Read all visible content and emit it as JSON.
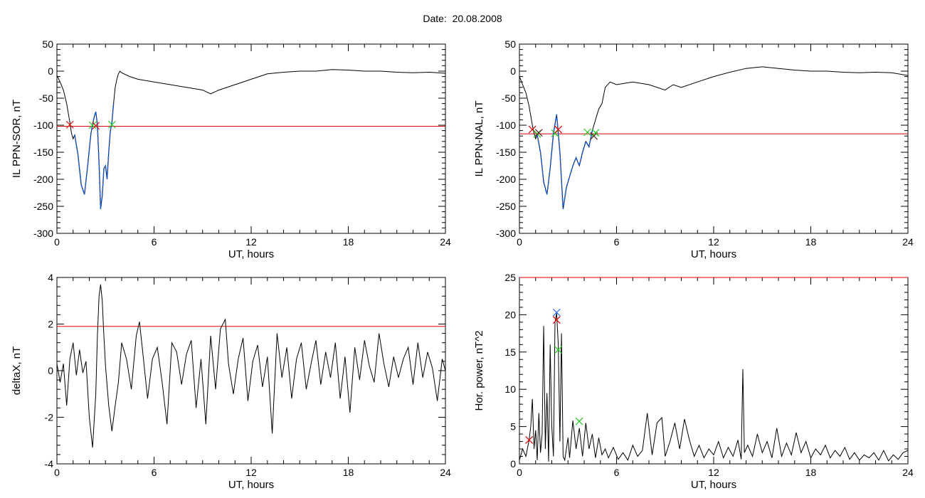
{
  "title": "Date:  20.08.2008",
  "colors": {
    "trace": "#000000",
    "threshold": "#e00000",
    "highlight": "#1f5fd0",
    "marker_red": "#e00000",
    "marker_green": "#22cc22",
    "marker_blue": "#2266ff",
    "marker_dark": "#552222"
  },
  "chart_data": [
    {
      "type": "line",
      "xlabel": "UT, hours",
      "ylabel": "IL PPN-SOR, nT",
      "xlim": [
        0,
        24
      ],
      "ylim": [
        -300,
        50
      ],
      "xticks": [
        "0",
        "6",
        "12",
        "18",
        "24"
      ],
      "yticks": [
        "50",
        "0",
        "-50",
        "-100",
        "-150",
        "-200",
        "-250",
        "-300"
      ],
      "series": [
        {
          "x": [
            0,
            0.2,
            0.4,
            0.6,
            0.8,
            0.9,
            1.0,
            1.1,
            1.3,
            1.5,
            1.7,
            1.9,
            2.1,
            2.3,
            2.4,
            2.5,
            2.6,
            2.7,
            2.8,
            2.9,
            3.0,
            3.1,
            3.2,
            3.3,
            3.4,
            3.5,
            3.6,
            3.7,
            3.8,
            3.9,
            4.0,
            4.5,
            5,
            6,
            7,
            8,
            9,
            9.5,
            10,
            11,
            12,
            13,
            14,
            15,
            16,
            17,
            18,
            19,
            20,
            21,
            22,
            23,
            24
          ],
          "y": [
            -8,
            -20,
            -35,
            -60,
            -95,
            -115,
            -125,
            -118,
            -155,
            -210,
            -228,
            -175,
            -115,
            -85,
            -75,
            -100,
            -170,
            -255,
            -230,
            -180,
            -175,
            -200,
            -150,
            -110,
            -95,
            -60,
            -30,
            -15,
            -5,
            0,
            -3,
            -10,
            -15,
            -20,
            -25,
            -30,
            -35,
            -42,
            -35,
            -25,
            -15,
            -5,
            -2,
            0,
            0,
            3,
            2,
            0,
            0,
            -2,
            -3,
            -2,
            -4
          ]
        },
        {
          "name": "highlight",
          "x": [
            1.1,
            1.3,
            1.5,
            1.7,
            1.9,
            2.1,
            2.3,
            2.4,
            2.5,
            2.6,
            2.7,
            2.8,
            2.9,
            3.0,
            3.1,
            3.2,
            3.3,
            3.4,
            3.5
          ],
          "y": [
            -118,
            -155,
            -210,
            -228,
            -175,
            -115,
            -85,
            -75,
            -100,
            -170,
            -255,
            -230,
            -180,
            -175,
            -200,
            -150,
            -110,
            -95,
            -60
          ]
        }
      ],
      "threshold": -102,
      "markers": [
        {
          "x": 0.8,
          "y": -99,
          "color": "marker_red"
        },
        {
          "x": 2.2,
          "y": -100,
          "color": "marker_green"
        },
        {
          "x": 2.4,
          "y": -101,
          "color": "marker_red"
        },
        {
          "x": 3.4,
          "y": -99,
          "color": "marker_green"
        }
      ]
    },
    {
      "type": "line",
      "xlabel": "UT, hours",
      "ylabel": "IL PPN-NAL, nT",
      "xlim": [
        0,
        24
      ],
      "ylim": [
        -300,
        50
      ],
      "xticks": [
        "0",
        "6",
        "12",
        "18",
        "24"
      ],
      "yticks": [
        "50",
        "0",
        "-50",
        "-100",
        "-150",
        "-200",
        "-250",
        "-300"
      ],
      "series": [
        {
          "x": [
            0,
            0.2,
            0.4,
            0.6,
            0.8,
            0.9,
            1.0,
            1.1,
            1.3,
            1.5,
            1.7,
            1.9,
            2.1,
            2.3,
            2.5,
            2.7,
            2.9,
            3.1,
            3.3,
            3.5,
            3.7,
            3.9,
            4.1,
            4.3,
            4.5,
            4.7,
            4.9,
            5.1,
            5.3,
            5.6,
            6,
            7,
            8,
            9,
            9.5,
            10,
            11,
            12,
            13,
            14,
            15,
            16,
            17,
            18,
            19,
            20,
            21,
            22,
            23,
            24
          ],
          "y": [
            -10,
            -25,
            -40,
            -65,
            -100,
            -115,
            -125,
            -118,
            -150,
            -205,
            -228,
            -180,
            -115,
            -80,
            -150,
            -255,
            -215,
            -195,
            -175,
            -160,
            -175,
            -150,
            -130,
            -140,
            -110,
            -90,
            -70,
            -60,
            -30,
            -20,
            -25,
            -20,
            -25,
            -35,
            -25,
            -30,
            -20,
            -10,
            -2,
            5,
            8,
            5,
            2,
            0,
            0,
            -2,
            -3,
            -2,
            -3,
            -8
          ]
        },
        {
          "name": "highlight",
          "x": [
            1.1,
            1.3,
            1.5,
            1.7,
            1.9,
            2.1,
            2.3,
            2.5,
            2.7,
            2.9,
            3.1,
            3.3,
            3.5,
            3.7,
            3.9,
            4.1,
            4.3,
            4.5
          ],
          "y": [
            -118,
            -150,
            -205,
            -228,
            -180,
            -115,
            -80,
            -150,
            -255,
            -215,
            -195,
            -175,
            -160,
            -175,
            -150,
            -130,
            -140,
            -110
          ]
        }
      ],
      "threshold": -116,
      "markers": [
        {
          "x": 0.8,
          "y": -108,
          "color": "marker_red"
        },
        {
          "x": 1.1,
          "y": -116,
          "color": "marker_green"
        },
        {
          "x": 1.2,
          "y": -114,
          "color": "marker_dark"
        },
        {
          "x": 2.2,
          "y": -115,
          "color": "marker_green"
        },
        {
          "x": 2.4,
          "y": -108,
          "color": "marker_red"
        },
        {
          "x": 4.2,
          "y": -113,
          "color": "marker_green"
        },
        {
          "x": 4.6,
          "y": -120,
          "color": "marker_dark"
        },
        {
          "x": 4.7,
          "y": -114,
          "color": "marker_green"
        }
      ]
    },
    {
      "type": "line",
      "xlabel": "UT, hours",
      "ylabel": "deltaX, nT",
      "xlim": [
        0,
        24
      ],
      "ylim": [
        -4,
        4
      ],
      "xticks": [
        "0",
        "6",
        "12",
        "18",
        "24"
      ],
      "yticks": [
        "4",
        "2",
        "0",
        "-2",
        "-4"
      ],
      "series": [
        {
          "x": [
            0,
            0.2,
            0.4,
            0.6,
            0.8,
            1.0,
            1.2,
            1.4,
            1.6,
            1.8,
            2.0,
            2.2,
            2.4,
            2.5,
            2.6,
            2.7,
            2.8,
            2.9,
            3.0,
            3.2,
            3.4,
            3.6,
            3.8,
            4.0,
            4.3,
            4.6,
            4.9,
            5.1,
            5.3,
            5.6,
            5.9,
            6.2,
            6.5,
            6.8,
            7.1,
            7.4,
            7.7,
            8.0,
            8.3,
            8.6,
            8.9,
            9.2,
            9.5,
            9.8,
            10.1,
            10.4,
            10.6,
            10.9,
            11.2,
            11.5,
            11.8,
            12.1,
            12.4,
            12.7,
            13.0,
            13.3,
            13.6,
            13.9,
            14.2,
            14.5,
            14.8,
            15.1,
            15.4,
            15.7,
            16.0,
            16.3,
            16.6,
            16.9,
            17.2,
            17.5,
            17.8,
            18.1,
            18.4,
            18.7,
            19.0,
            19.3,
            19.6,
            19.9,
            20.2,
            20.5,
            20.8,
            21.1,
            21.4,
            21.7,
            22.0,
            22.3,
            22.6,
            22.9,
            23.2,
            23.5,
            23.8,
            24
          ],
          "y": [
            0.3,
            -0.5,
            0.3,
            -1.5,
            0.5,
            1.2,
            -0.2,
            0.9,
            -0.1,
            0.4,
            -2.0,
            -3.3,
            -1.0,
            1.5,
            3.2,
            3.7,
            3.0,
            1.5,
            0.2,
            -1.5,
            -2.6,
            -1.5,
            -0.5,
            1.2,
            0.5,
            -0.8,
            1.5,
            2.1,
            0.8,
            -1.2,
            0.5,
            1.0,
            -0.5,
            -2.3,
            1.2,
            0.8,
            -0.6,
            0.7,
            1.3,
            -1.6,
            0.5,
            -2.3,
            1.5,
            -0.8,
            1.8,
            2.2,
            0.3,
            -1.0,
            0.5,
            1.4,
            -1.3,
            0.4,
            1.1,
            -0.7,
            0.6,
            -2.7,
            1.6,
            -0.3,
            1.0,
            -1.2,
            0.5,
            1.2,
            -0.8,
            0.3,
            1.3,
            -0.6,
            0.8,
            -0.3,
            1.2,
            -1.2,
            0.6,
            -1.8,
            1.0,
            -0.4,
            1.3,
            0.2,
            -0.5,
            1.6,
            0.3,
            -0.7,
            0.6,
            -0.3,
            0.5,
            1.0,
            -0.6,
            1.2,
            -0.3,
            0.8,
            0.1,
            -1.3,
            0.5,
            0.0
          ]
        }
      ],
      "threshold": 1.9,
      "markers": []
    },
    {
      "type": "line",
      "xlabel": "UT, hours",
      "ylabel": "Hor. power, nT^2",
      "xlim": [
        0,
        24
      ],
      "ylim": [
        0,
        25
      ],
      "xticks": [
        "0",
        "6",
        "12",
        "18",
        "24"
      ],
      "yticks": [
        "25",
        "20",
        "15",
        "10",
        "5",
        "0"
      ],
      "series": [
        {
          "x": [
            0,
            0.2,
            0.4,
            0.6,
            0.7,
            0.8,
            0.9,
            1.0,
            1.1,
            1.2,
            1.3,
            1.4,
            1.5,
            1.6,
            1.7,
            1.8,
            1.9,
            2.0,
            2.1,
            2.2,
            2.3,
            2.4,
            2.5,
            2.6,
            2.7,
            2.8,
            2.9,
            3.0,
            3.1,
            3.3,
            3.5,
            3.7,
            3.9,
            4.1,
            4.3,
            4.5,
            4.7,
            4.9,
            5.1,
            5.3,
            5.5,
            5.8,
            6.1,
            6.4,
            6.7,
            7.0,
            7.3,
            7.6,
            7.9,
            8.2,
            8.5,
            8.8,
            9.0,
            9.3,
            9.6,
            9.9,
            10.2,
            10.5,
            10.8,
            11.1,
            11.4,
            11.7,
            12.0,
            12.3,
            12.6,
            12.9,
            13.2,
            13.5,
            13.7,
            13.8,
            13.9,
            14.1,
            14.4,
            14.7,
            15.0,
            15.3,
            15.6,
            15.9,
            16.2,
            16.5,
            16.8,
            17.1,
            17.4,
            17.7,
            18.0,
            18.3,
            18.6,
            18.9,
            19.2,
            19.5,
            19.8,
            20.1,
            20.4,
            20.7,
            21.0,
            21.3,
            21.6,
            21.9,
            22.2,
            22.5,
            22.8,
            23.1,
            23.4,
            23.7,
            24
          ],
          "y": [
            0.5,
            2.0,
            1.0,
            3.2,
            5.0,
            8.7,
            2.0,
            4.5,
            0.5,
            6.8,
            1.5,
            4.0,
            18.5,
            2.0,
            9.5,
            0.3,
            16.0,
            5.0,
            1.0,
            19.0,
            20.2,
            16.0,
            3.0,
            17.5,
            1.0,
            0.5,
            2.0,
            3.5,
            0.8,
            5.8,
            2.0,
            4.8,
            1.0,
            5.5,
            2.0,
            4.0,
            0.8,
            3.5,
            1.2,
            2.0,
            0.8,
            2.2,
            0.6,
            1.5,
            0.5,
            2.5,
            1.0,
            1.8,
            6.8,
            1.2,
            5.5,
            6.2,
            1.0,
            3.0,
            5.5,
            2.0,
            6.0,
            3.2,
            1.0,
            2.5,
            0.8,
            2.0,
            1.2,
            3.0,
            0.8,
            2.2,
            1.0,
            3.2,
            0.6,
            12.7,
            1.5,
            2.5,
            1.0,
            4.0,
            1.5,
            3.0,
            0.8,
            4.8,
            1.0,
            2.8,
            1.2,
            4.2,
            1.5,
            3.0,
            0.8,
            2.0,
            1.2,
            2.5,
            0.8,
            1.8,
            1.0,
            2.2,
            0.6,
            1.5,
            0.5,
            1.2,
            0.8,
            1.5,
            0.5,
            1.8,
            0.4,
            1.2,
            0.6,
            1.5,
            1.8
          ]
        }
      ],
      "threshold": 25,
      "markers": [
        {
          "x": 0.6,
          "y": 3.2,
          "color": "marker_red"
        },
        {
          "x": 2.3,
          "y": 20.3,
          "color": "marker_blue"
        },
        {
          "x": 2.3,
          "y": 19.3,
          "color": "marker_red"
        },
        {
          "x": 2.4,
          "y": 15.3,
          "color": "marker_green"
        },
        {
          "x": 3.7,
          "y": 5.7,
          "color": "marker_green"
        }
      ]
    }
  ]
}
